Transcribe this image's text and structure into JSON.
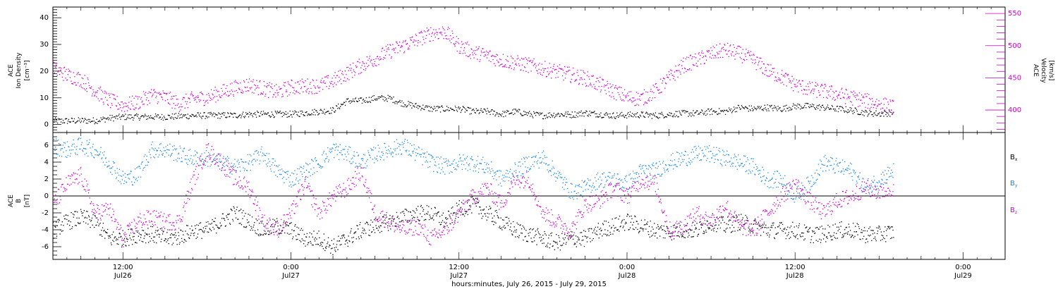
{
  "xaxis": {
    "title": "hours:minutes, July 26, 2015 - July 29, 2015",
    "ticks": [
      {
        "t": 12,
        "time": "12:00",
        "date": "Jul26"
      },
      {
        "t": 24,
        "time": "0:00",
        "date": "Jul27"
      },
      {
        "t": 36,
        "time": "12:00",
        "date": "Jul27"
      },
      {
        "t": 48,
        "time": "0:00",
        "date": "Jul28"
      },
      {
        "t": 60,
        "time": "12:00",
        "date": "Jul28"
      },
      {
        "t": 72,
        "time": "0:00",
        "date": "Jul29"
      }
    ]
  },
  "colors": {
    "density": "#000000",
    "velocity": "#cc00cc",
    "bx": "#000000",
    "by": "#1e88e5",
    "bz": "#cc00cc",
    "frame": "#000000"
  },
  "chart_data": [
    {
      "type": "scatter",
      "panel": "top",
      "x_range_hours_from_jul26_0000": [
        7,
        75
      ],
      "left_axis": {
        "label_line1": "ACE",
        "label_line2": "Ion Density",
        "label_line3": "[cm⁻³]",
        "ylim": [
          -3,
          44
        ],
        "ticks": [
          0,
          10,
          20,
          30,
          40
        ]
      },
      "right_axis": {
        "label_line1": "ACE",
        "label_line2": "Velocity",
        "label_line3": "[km/s]",
        "ylim": [
          365,
          560
        ],
        "ticks": [
          400,
          450,
          500,
          550
        ]
      },
      "series": [
        {
          "key": "density",
          "axis": "left",
          "x": [
            7,
            8,
            9,
            10,
            11,
            12,
            13,
            14,
            15,
            16,
            17,
            18,
            19,
            20,
            21,
            22,
            23,
            24,
            25,
            26,
            27,
            28,
            29,
            30,
            31,
            32,
            33,
            34,
            35,
            36,
            37,
            38,
            39,
            40,
            41,
            42,
            43,
            44,
            45,
            46,
            47,
            48,
            49,
            50,
            51,
            52,
            53,
            54,
            55,
            56,
            57,
            58,
            59,
            60,
            61,
            62,
            63,
            64,
            65,
            66,
            67
          ],
          "values": [
            1.5,
            1.5,
            1.6,
            1.6,
            2.5,
            3,
            3,
            3,
            3,
            3.2,
            3.5,
            3.5,
            3.6,
            3.6,
            4,
            4,
            4,
            4,
            4.5,
            5,
            5.5,
            9,
            9,
            10,
            10,
            8,
            7,
            6,
            6,
            6,
            5,
            5,
            4,
            5,
            4,
            3.5,
            4,
            3.8,
            4.5,
            4,
            3.5,
            3.7,
            3.8,
            3.5,
            4,
            4.3,
            4.3,
            5,
            5,
            6.5,
            6,
            6.5,
            6,
            7,
            7,
            6.5,
            6,
            5.5,
            4.5,
            4.2,
            4.5
          ]
        },
        {
          "key": "velocity",
          "axis": "right",
          "x": [
            7,
            8,
            9,
            10,
            11,
            12,
            13,
            14,
            15,
            16,
            17,
            18,
            19,
            20,
            21,
            22,
            23,
            24,
            25,
            26,
            27,
            28,
            29,
            30,
            31,
            32,
            33,
            34,
            35,
            36,
            37,
            38,
            39,
            40,
            41,
            42,
            43,
            44,
            45,
            46,
            47,
            48,
            49,
            50,
            51,
            52,
            53,
            54,
            55,
            56,
            57,
            58,
            59,
            60,
            61,
            62,
            63,
            64,
            65,
            66,
            67
          ],
          "values": [
            465,
            455,
            448,
            430,
            415,
            408,
            412,
            424,
            420,
            410,
            418,
            420,
            428,
            435,
            440,
            434,
            428,
            436,
            438,
            438,
            446,
            458,
            470,
            480,
            492,
            500,
            510,
            520,
            522,
            500,
            490,
            485,
            478,
            474,
            470,
            465,
            460,
            455,
            450,
            440,
            430,
            420,
            418,
            430,
            450,
            470,
            478,
            488,
            494,
            488,
            478,
            462,
            452,
            440,
            433,
            430,
            425,
            420,
            415,
            410,
            405
          ]
        }
      ]
    },
    {
      "type": "scatter",
      "panel": "bottom",
      "x_range_hours_from_jul26_0000": [
        7,
        75
      ],
      "left_axis": {
        "label_line1": "ACE",
        "label_line2": "B",
        "label_line3": "[nT]",
        "ylim": [
          -7.5,
          7.5
        ],
        "ticks": [
          -6,
          -4,
          -2,
          0,
          2,
          4,
          6
        ]
      },
      "legend": {
        "position": "right",
        "entries": [
          {
            "key": "bx",
            "label": "B",
            "sub": "x"
          },
          {
            "key": "by",
            "label": "B",
            "sub": "y"
          },
          {
            "key": "bz",
            "label": "B",
            "sub": "z"
          }
        ]
      },
      "series": [
        {
          "key": "bx",
          "x": [
            7,
            8,
            9,
            10,
            11,
            12,
            13,
            14,
            15,
            16,
            17,
            18,
            19,
            20,
            21,
            22,
            23,
            24,
            25,
            26,
            27,
            28,
            29,
            30,
            31,
            32,
            33,
            34,
            35,
            36,
            37,
            38,
            39,
            40,
            41,
            42,
            43,
            44,
            45,
            46,
            47,
            48,
            49,
            50,
            51,
            52,
            53,
            54,
            55,
            56,
            57,
            58,
            59,
            60,
            61,
            62,
            63,
            64,
            65,
            66,
            67
          ],
          "values": [
            -4,
            -3,
            -2.5,
            -3,
            -5,
            -5,
            -4.5,
            -4.5,
            -5,
            -4.8,
            -4,
            -4,
            -3,
            -2,
            -3,
            -4,
            -3.5,
            -4,
            -5,
            -5,
            -6,
            -5,
            -4,
            -3.5,
            -3,
            -2.5,
            -2,
            -2,
            -3,
            -1.5,
            -1,
            -2,
            -3,
            -4,
            -4.5,
            -5,
            -5.5,
            -5,
            -5,
            -4,
            -3.5,
            -3,
            -3.5,
            -4,
            -4.2,
            -4,
            -4,
            -3,
            -3.5,
            -3,
            -3.5,
            -4,
            -4,
            -4,
            -4.5,
            -4.5,
            -4,
            -4,
            -4.5,
            -4.5,
            -4.2
          ]
        },
        {
          "key": "by",
          "x": [
            7,
            8,
            9,
            10,
            11,
            12,
            13,
            14,
            15,
            16,
            17,
            18,
            19,
            20,
            21,
            22,
            23,
            24,
            25,
            26,
            27,
            28,
            29,
            30,
            31,
            32,
            33,
            34,
            35,
            36,
            37,
            38,
            39,
            40,
            41,
            42,
            43,
            44,
            45,
            46,
            47,
            48,
            49,
            50,
            51,
            52,
            53,
            54,
            55,
            56,
            57,
            58,
            59,
            60,
            61,
            62,
            63,
            64,
            65,
            66,
            67
          ],
          "values": [
            6,
            5.5,
            6,
            5.5,
            4,
            2,
            2.5,
            5.5,
            5.5,
            5,
            4.5,
            4.5,
            4,
            3.5,
            4,
            5,
            3,
            2,
            3,
            4,
            5.5,
            5,
            4,
            5,
            5.5,
            6,
            5,
            4,
            3.5,
            4,
            4,
            3.5,
            2,
            3,
            4,
            4.5,
            2.5,
            0.5,
            1,
            2,
            2,
            1.5,
            3,
            3,
            4,
            4.5,
            5,
            5,
            4.5,
            4,
            3.5,
            2,
            2,
            0,
            1.5,
            4,
            3.5,
            3,
            1,
            2,
            3
          ]
        },
        {
          "key": "bz",
          "x": [
            7,
            8,
            9,
            10,
            11,
            12,
            13,
            14,
            15,
            16,
            17,
            18,
            19,
            20,
            21,
            22,
            23,
            24,
            25,
            26,
            27,
            28,
            29,
            30,
            31,
            32,
            33,
            34,
            35,
            36,
            37,
            38,
            39,
            40,
            41,
            42,
            43,
            44,
            45,
            46,
            47,
            48,
            49,
            50,
            51,
            52,
            53,
            54,
            55,
            56,
            57,
            58,
            59,
            60,
            61,
            62,
            63,
            64,
            65,
            66,
            67
          ],
          "values": [
            -1,
            1.5,
            2.5,
            -2,
            -1.5,
            -5,
            -3,
            -2.5,
            -3,
            -3,
            2,
            5.5,
            4,
            2,
            1,
            -3,
            -4,
            -2,
            1.5,
            -2,
            0,
            1,
            3,
            -2,
            -3,
            -4,
            -3.5,
            -5,
            -4,
            -2,
            0,
            1,
            -1,
            2,
            2,
            -2,
            -3,
            -4,
            -1,
            -0.5,
            1,
            0,
            2,
            1.5,
            -4,
            -3.5,
            -2,
            -3,
            -1,
            -3.5,
            -4,
            -2,
            0,
            1.5,
            -0.5,
            -2,
            -0.5,
            0,
            1,
            0.5,
            1
          ]
        }
      ]
    }
  ]
}
